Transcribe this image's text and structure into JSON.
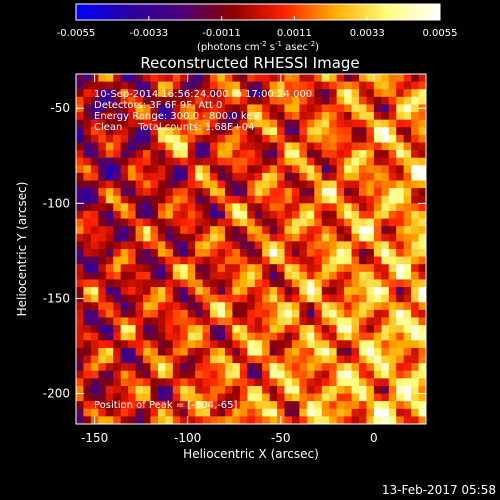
{
  "colorbar": {
    "tick_labels": [
      "-0.0055",
      "-0.0033",
      "-0.0011",
      "0.0011",
      "0.0033",
      "0.0055"
    ],
    "unit_label_parts": [
      "(photons cm",
      "-2",
      " s",
      "-1",
      " asec",
      "-2",
      ")"
    ],
    "colors": [
      "#0000ff",
      "#2a00a0",
      "#4a007a",
      "#8a0000",
      "#ff2000",
      "#ffb000",
      "#ffff80",
      "#ffffff"
    ]
  },
  "annotations": {
    "line1": "10-Sep-2014 16:56:24.000 to 17:00:24.000",
    "line2": "Detectors: 3F 6F 9F, Att 0",
    "line3": "Energy Range: 300.0 - 800.0 keV",
    "line4": "Clean     Total counts: 1.68E+04",
    "peak": "Position of Peak = [-104,-65]"
  },
  "footer": {
    "timestamp": "13-Feb-2017 05:58"
  },
  "chart_data": {
    "type": "heatmap",
    "title": "Reconstructed RHESSI Image",
    "xlabel": "Heliocentric X (arcsec)",
    "ylabel": "Heliocentric Y (arcsec)",
    "xlim": [
      -160,
      28
    ],
    "ylim": [
      -216,
      -32
    ],
    "xticks": [
      -150,
      -100,
      -50,
      0
    ],
    "yticks": [
      -50,
      -100,
      -150,
      -200
    ],
    "colorbar_range": [
      -0.0055,
      0.0055
    ],
    "peak_position": [
      -104,
      -65
    ],
    "pixel_size_arcsec": 4,
    "grid": false
  }
}
